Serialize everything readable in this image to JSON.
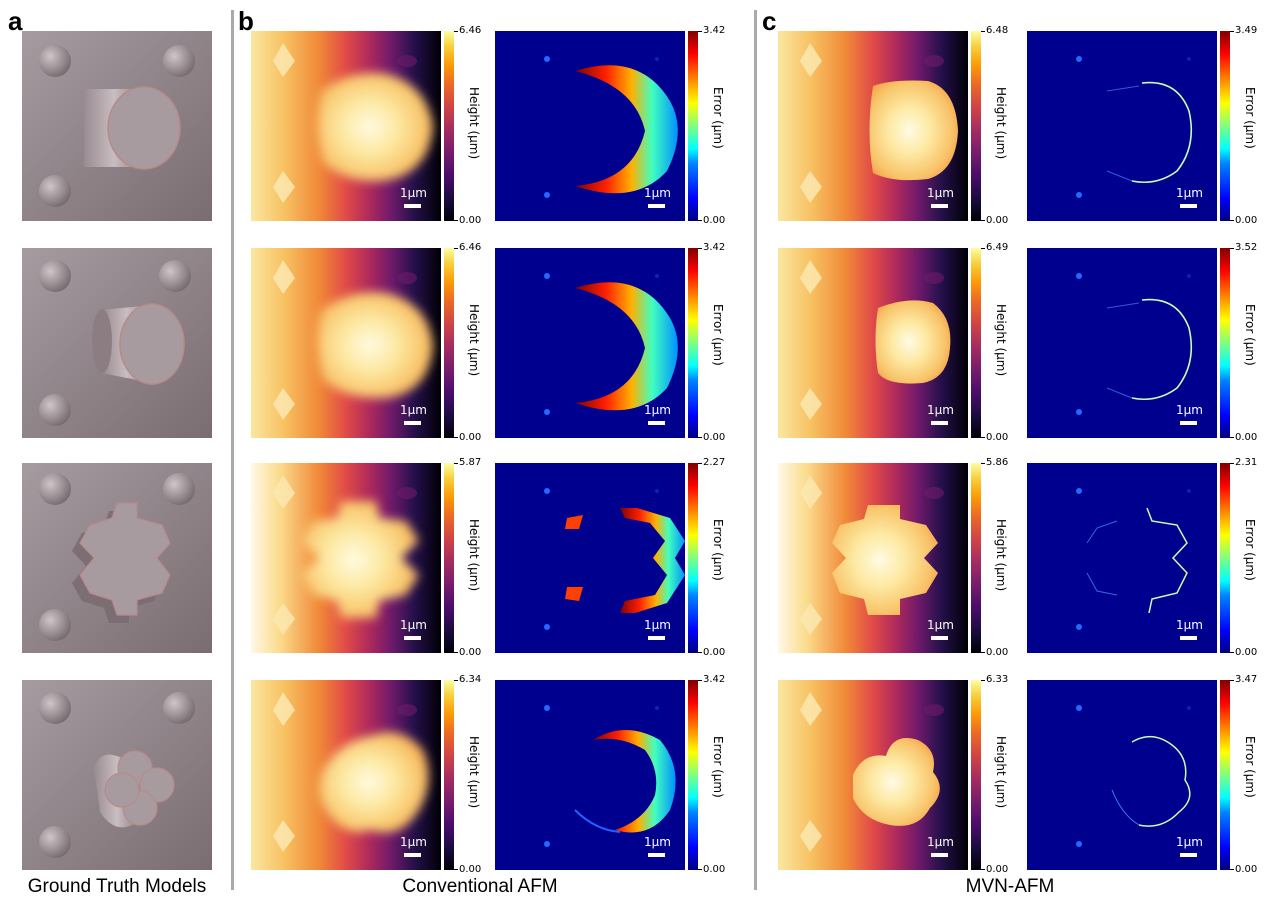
{
  "panels": {
    "a": "a",
    "b": "b",
    "c": "c"
  },
  "captions": {
    "a": "Ground Truth Models",
    "b": "Conventional AFM",
    "c": "MVN-AFM"
  },
  "scale_bar": "1µm",
  "height_title": "Height (µm)",
  "error_title": "Error (µm)",
  "rows": [
    {
      "shape": "cylinder",
      "conv": {
        "height_max": "6.46",
        "height_min": "0.00",
        "error_max": "3.42",
        "error_min": "0.00"
      },
      "mvn": {
        "height_max": "6.48",
        "height_min": "0.00",
        "error_max": "3.49",
        "error_min": "0.00"
      }
    },
    {
      "shape": "tilted-cylinder",
      "conv": {
        "height_max": "6.46",
        "height_min": "0.00",
        "error_max": "3.42",
        "error_min": "0.00"
      },
      "mvn": {
        "height_max": "6.49",
        "height_min": "0.00",
        "error_max": "3.52",
        "error_min": "0.00"
      }
    },
    {
      "shape": "gear",
      "conv": {
        "height_max": "5.87",
        "height_min": "0.00",
        "error_max": "2.27",
        "error_min": "0.00"
      },
      "mvn": {
        "height_max": "5.86",
        "height_min": "0.00",
        "error_max": "2.31",
        "error_min": "0.00"
      }
    },
    {
      "shape": "quatrefoil",
      "conv": {
        "height_max": "6.34",
        "height_min": "0.00",
        "error_max": "3.42",
        "error_min": "0.00"
      },
      "mvn": {
        "height_max": "6.33",
        "height_min": "0.00",
        "error_max": "3.47",
        "error_min": "0.00"
      }
    }
  ],
  "colors": {
    "divider": "#aaaaaa",
    "jet_background": "#00008f",
    "gt_surface": "#8c7d82"
  }
}
